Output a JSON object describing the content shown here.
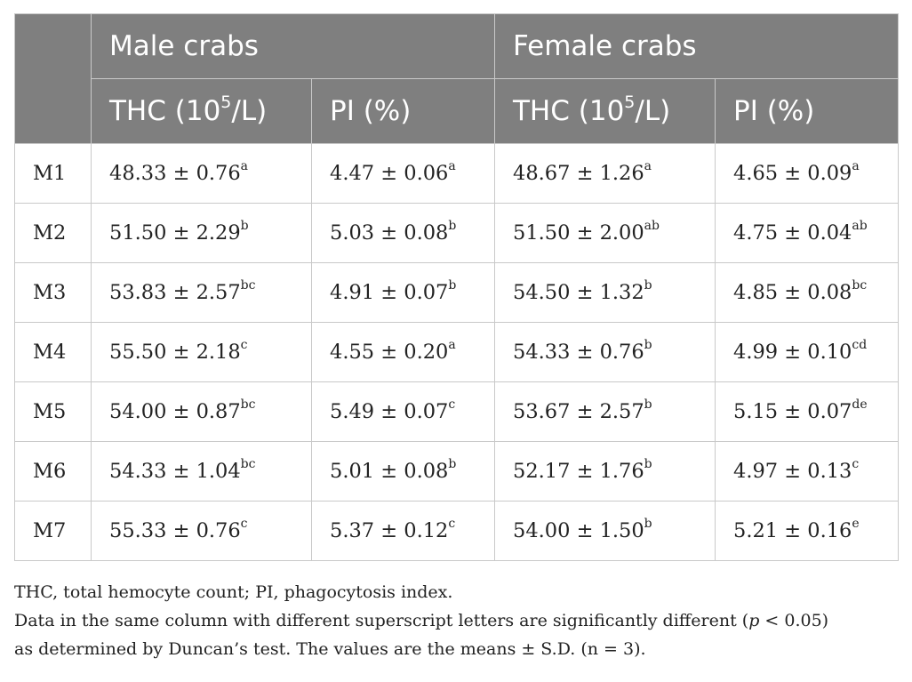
{
  "table": {
    "header": {
      "corner": "",
      "group_male": "Male crabs",
      "group_female": "Female crabs",
      "columns": [
        {
          "base": "THC (10",
          "sup": "5",
          "tail": "/L)"
        },
        {
          "base": "PI (%)",
          "sup": "",
          "tail": ""
        },
        {
          "base": "THC (10",
          "sup": "5",
          "tail": "/L)"
        },
        {
          "base": "PI (%)",
          "sup": "",
          "tail": ""
        }
      ]
    },
    "rows": [
      {
        "label": "M1",
        "cells": [
          {
            "value": "48.33 ± 0.76",
            "sup": "a"
          },
          {
            "value": "4.47 ± 0.06",
            "sup": "a"
          },
          {
            "value": "48.67 ± 1.26",
            "sup": "a"
          },
          {
            "value": "4.65 ± 0.09",
            "sup": "a"
          }
        ]
      },
      {
        "label": "M2",
        "cells": [
          {
            "value": "51.50 ± 2.29",
            "sup": "b"
          },
          {
            "value": "5.03 ± 0.08",
            "sup": "b"
          },
          {
            "value": "51.50 ± 2.00",
            "sup": "ab"
          },
          {
            "value": "4.75 ± 0.04",
            "sup": "ab"
          }
        ]
      },
      {
        "label": "M3",
        "cells": [
          {
            "value": "53.83 ± 2.57",
            "sup": "bc"
          },
          {
            "value": "4.91 ± 0.07",
            "sup": "b"
          },
          {
            "value": "54.50 ± 1.32",
            "sup": "b"
          },
          {
            "value": "4.85 ± 0.08",
            "sup": "bc"
          }
        ]
      },
      {
        "label": "M4",
        "cells": [
          {
            "value": "55.50 ± 2.18",
            "sup": "c"
          },
          {
            "value": "4.55 ± 0.20",
            "sup": "a"
          },
          {
            "value": "54.33 ± 0.76",
            "sup": "b"
          },
          {
            "value": "4.99 ± 0.10",
            "sup": "cd"
          }
        ]
      },
      {
        "label": "M5",
        "cells": [
          {
            "value": "54.00 ± 0.87",
            "sup": "bc"
          },
          {
            "value": "5.49 ± 0.07",
            "sup": "c"
          },
          {
            "value": "53.67 ± 2.57",
            "sup": "b"
          },
          {
            "value": "5.15 ± 0.07",
            "sup": "de"
          }
        ]
      },
      {
        "label": "M6",
        "cells": [
          {
            "value": "54.33 ± 1.04",
            "sup": "bc"
          },
          {
            "value": "5.01 ± 0.08",
            "sup": "b"
          },
          {
            "value": "52.17 ± 1.76",
            "sup": "b"
          },
          {
            "value": "4.97 ± 0.13",
            "sup": "c"
          }
        ]
      },
      {
        "label": "M7",
        "cells": [
          {
            "value": "55.33 ± 0.76",
            "sup": "c"
          },
          {
            "value": "5.37 ± 0.12",
            "sup": "c"
          },
          {
            "value": "54.00 ± 1.50",
            "sup": "b"
          },
          {
            "value": "5.21 ± 0.16",
            "sup": "e"
          }
        ]
      }
    ]
  },
  "footnotes": {
    "abbreviations": "THC, total hemocyte count; PI, phagocytosis index.",
    "significance_prefix": "Data in the same column with different superscript letters are significantly different (",
    "significance_p": "p",
    "significance_suffix": " < 0.05)",
    "method": "as determined by Duncan’s test. The values are the means ± S.D. (n = 3)."
  },
  "colors": {
    "header_bg": "#7f7f7f",
    "header_text": "#ffffff",
    "grid": "#c9c9c9",
    "body_text": "#222222"
  }
}
